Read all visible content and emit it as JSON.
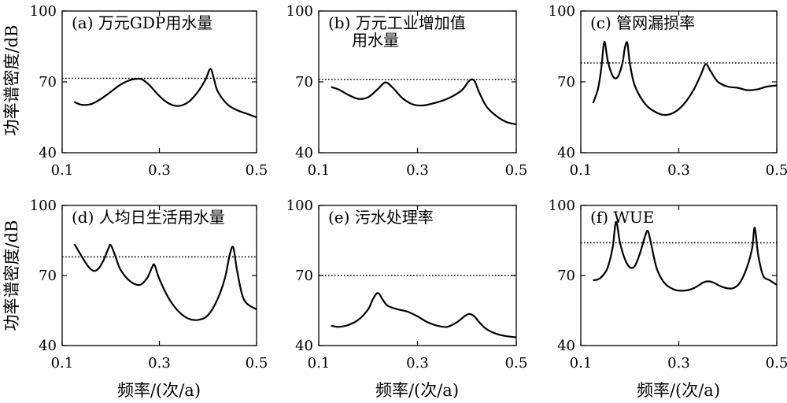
{
  "xlabel": "频率/(次/a)",
  "ylabel": "功率谱密度/dB",
  "charts": [
    {
      "type": "line",
      "title_lines": [
        "(a) 万元GDP用水量"
      ],
      "xlim": [
        0.1,
        0.5
      ],
      "ylim": [
        40,
        100
      ],
      "xticks": [
        "0.1",
        "0.3",
        "0.5"
      ],
      "yticks": [
        "40",
        "70",
        "100"
      ],
      "threshold": 71.5,
      "series": {
        "x": [
          0.125,
          0.14,
          0.16,
          0.18,
          0.2,
          0.22,
          0.24,
          0.255,
          0.265,
          0.28,
          0.3,
          0.32,
          0.34,
          0.36,
          0.38,
          0.395,
          0.405,
          0.412,
          0.42,
          0.44,
          0.46,
          0.48,
          0.5
        ],
        "y": [
          61.5,
          60.3,
          60.6,
          62.8,
          65.8,
          68.8,
          70.8,
          71.3,
          71.0,
          68.5,
          64.0,
          60.8,
          59.8,
          61.5,
          66.0,
          71.0,
          75.5,
          71.5,
          66.0,
          60.5,
          58.0,
          56.5,
          55.0
        ]
      }
    },
    {
      "type": "line",
      "title_lines": [
        "(b) 万元工业增加值",
        "用水量"
      ],
      "xlim": [
        0.1,
        0.5
      ],
      "ylim": [
        40,
        100
      ],
      "xticks": [
        "0.1",
        "0.3",
        "0.5"
      ],
      "yticks": [
        "40",
        "70",
        "100"
      ],
      "threshold": 71.0,
      "series": {
        "x": [
          0.125,
          0.14,
          0.16,
          0.18,
          0.2,
          0.22,
          0.235,
          0.25,
          0.27,
          0.29,
          0.31,
          0.33,
          0.35,
          0.37,
          0.39,
          0.405,
          0.415,
          0.425,
          0.44,
          0.46,
          0.48,
          0.5
        ],
        "y": [
          67.8,
          66.8,
          64.5,
          62.8,
          63.5,
          67.0,
          69.8,
          67.5,
          63.0,
          60.5,
          60.0,
          60.8,
          62.0,
          63.8,
          66.5,
          70.5,
          70.5,
          65.5,
          59.5,
          55.5,
          53.0,
          52.0
        ]
      }
    },
    {
      "type": "line",
      "title_lines": [
        "(c) 管网漏损率"
      ],
      "xlim": [
        0.1,
        0.5
      ],
      "ylim": [
        40,
        100
      ],
      "xticks": [
        "0.1",
        "0.3",
        "0.5"
      ],
      "yticks": [
        "40",
        "70",
        "100"
      ],
      "threshold": 78.0,
      "series": {
        "x": [
          0.125,
          0.135,
          0.142,
          0.148,
          0.155,
          0.165,
          0.175,
          0.185,
          0.19,
          0.195,
          0.2,
          0.21,
          0.23,
          0.25,
          0.27,
          0.29,
          0.31,
          0.33,
          0.345,
          0.355,
          0.365,
          0.38,
          0.4,
          0.42,
          0.44,
          0.46,
          0.48,
          0.5
        ],
        "y": [
          61.0,
          67.0,
          76.0,
          87.0,
          79.0,
          72.5,
          72.0,
          78.0,
          84.5,
          86.5,
          78.0,
          68.5,
          61.0,
          57.5,
          56.0,
          57.0,
          60.5,
          66.5,
          73.0,
          77.5,
          74.5,
          70.0,
          68.0,
          67.5,
          66.5,
          66.8,
          68.0,
          68.5
        ]
      }
    },
    {
      "type": "line",
      "title_lines": [
        "(d) 人均日生活用水量"
      ],
      "xlim": [
        0.1,
        0.5
      ],
      "ylim": [
        40,
        100
      ],
      "xticks": [
        "0.1",
        "0.3",
        "0.5"
      ],
      "yticks": [
        "40",
        "70",
        "100"
      ],
      "threshold": 78.0,
      "series": {
        "x": [
          0.125,
          0.135,
          0.145,
          0.155,
          0.165,
          0.175,
          0.185,
          0.195,
          0.2,
          0.21,
          0.22,
          0.24,
          0.26,
          0.275,
          0.285,
          0.29,
          0.3,
          0.32,
          0.34,
          0.36,
          0.38,
          0.4,
          0.42,
          0.435,
          0.445,
          0.452,
          0.46,
          0.47,
          0.48,
          0.5
        ],
        "y": [
          83.5,
          80.0,
          76.5,
          73.5,
          72.0,
          73.0,
          76.5,
          81.5,
          83.0,
          78.0,
          72.5,
          67.5,
          66.0,
          69.0,
          73.5,
          74.5,
          68.5,
          60.0,
          54.5,
          51.5,
          51.0,
          53.0,
          60.0,
          69.0,
          79.0,
          82.0,
          72.0,
          62.0,
          58.0,
          55.5
        ]
      }
    },
    {
      "type": "line",
      "title_lines": [
        "(e) 污水处理率"
      ],
      "xlim": [
        0.1,
        0.5
      ],
      "ylim": [
        40,
        100
      ],
      "xticks": [
        "0.1",
        "0.3",
        "0.5"
      ],
      "yticks": [
        "40",
        "70",
        "100"
      ],
      "threshold": 70.0,
      "series": {
        "x": [
          0.125,
          0.14,
          0.16,
          0.18,
          0.2,
          0.21,
          0.22,
          0.23,
          0.24,
          0.26,
          0.28,
          0.3,
          0.32,
          0.34,
          0.36,
          0.38,
          0.395,
          0.405,
          0.415,
          0.425,
          0.44,
          0.46,
          0.48,
          0.5
        ],
        "y": [
          48.5,
          48.0,
          48.8,
          51.0,
          55.5,
          60.0,
          62.5,
          59.5,
          57.0,
          55.5,
          54.5,
          52.5,
          50.0,
          48.5,
          48.0,
          50.0,
          52.5,
          53.5,
          52.5,
          50.0,
          47.0,
          45.0,
          44.0,
          43.5
        ]
      }
    },
    {
      "type": "line",
      "title_lines": [
        "(f) WUE"
      ],
      "xlim": [
        0.1,
        0.5
      ],
      "ylim": [
        40,
        100
      ],
      "xticks": [
        "0.1",
        "0.3",
        "0.5"
      ],
      "yticks": [
        "40",
        "70",
        "100"
      ],
      "threshold": 84.0,
      "series": {
        "x": [
          0.125,
          0.135,
          0.145,
          0.155,
          0.165,
          0.172,
          0.18,
          0.19,
          0.2,
          0.21,
          0.22,
          0.23,
          0.237,
          0.245,
          0.255,
          0.27,
          0.29,
          0.31,
          0.33,
          0.35,
          0.36,
          0.37,
          0.39,
          0.41,
          0.425,
          0.44,
          0.45,
          0.455,
          0.462,
          0.472,
          0.485,
          0.5
        ],
        "y": [
          68.0,
          68.3,
          70.0,
          73.5,
          82.0,
          93.0,
          84.0,
          77.0,
          73.5,
          74.0,
          79.0,
          86.0,
          89.0,
          82.0,
          73.0,
          67.0,
          64.0,
          63.5,
          64.5,
          67.0,
          67.5,
          67.0,
          65.0,
          64.5,
          67.0,
          74.0,
          82.0,
          90.5,
          79.0,
          70.0,
          68.0,
          66.0
        ]
      }
    }
  ]
}
